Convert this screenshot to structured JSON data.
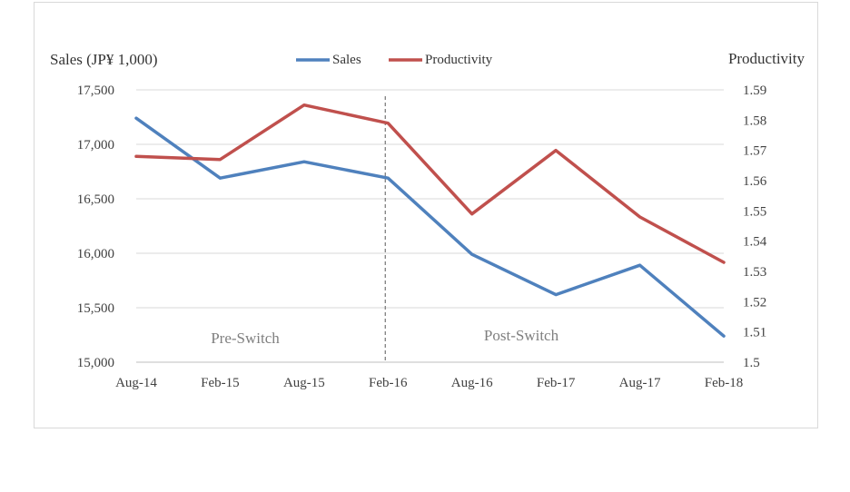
{
  "chart_data": {
    "type": "line",
    "categories": [
      "Aug-14",
      "Feb-15",
      "Aug-15",
      "Feb-16",
      "Aug-16",
      "Feb-17",
      "Aug-17",
      "Feb-18"
    ],
    "series": [
      {
        "name": "Sales",
        "axis": "left",
        "color": "#4f81bd",
        "values": [
          17240,
          16690,
          16840,
          16690,
          15990,
          15620,
          15890,
          15240
        ]
      },
      {
        "name": "Productivity",
        "axis": "right",
        "color": "#c0504d",
        "values": [
          1.568,
          1.567,
          1.585,
          1.579,
          1.549,
          1.57,
          1.548,
          1.533
        ]
      }
    ],
    "ylabel": "Sales (JP¥ 1,000)",
    "y2label": "Productivity",
    "ylim": [
      15000,
      17500
    ],
    "yticks": [
      "15,000",
      "15,500",
      "16,000",
      "16,500",
      "17,000",
      "17,500"
    ],
    "y2lim": [
      1.5,
      1.59
    ],
    "y2ticks": [
      "1.5",
      "1.51",
      "1.52",
      "1.53",
      "1.54",
      "1.55",
      "1.56",
      "1.57",
      "1.58",
      "1.59"
    ],
    "grid": true,
    "legend_position": "top-center",
    "divider_at": "Feb-16",
    "annotations": [
      "Pre-Switch",
      "Post-Switch"
    ]
  }
}
